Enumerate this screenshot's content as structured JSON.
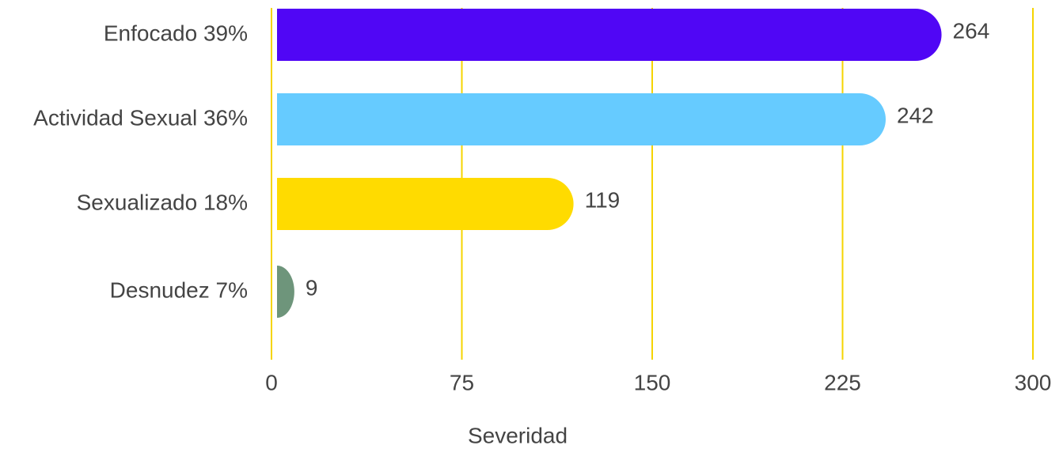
{
  "chart_data": {
    "type": "bar",
    "orientation": "horizontal",
    "categories": [
      "Enfocado 39%",
      "Actividad Sexual 36%",
      "Sexualizado 18%",
      "Desnudez 7%"
    ],
    "values": [
      264,
      242,
      119,
      9
    ],
    "colors": [
      "#5006f5",
      "#66cbff",
      "#ffdb00",
      "#6e957b"
    ],
    "x_label": "Severidad",
    "xlim": [
      0,
      300
    ],
    "xticks": [
      0,
      75,
      150,
      225,
      300
    ],
    "grid": true,
    "grid_color": "#f5d400"
  }
}
